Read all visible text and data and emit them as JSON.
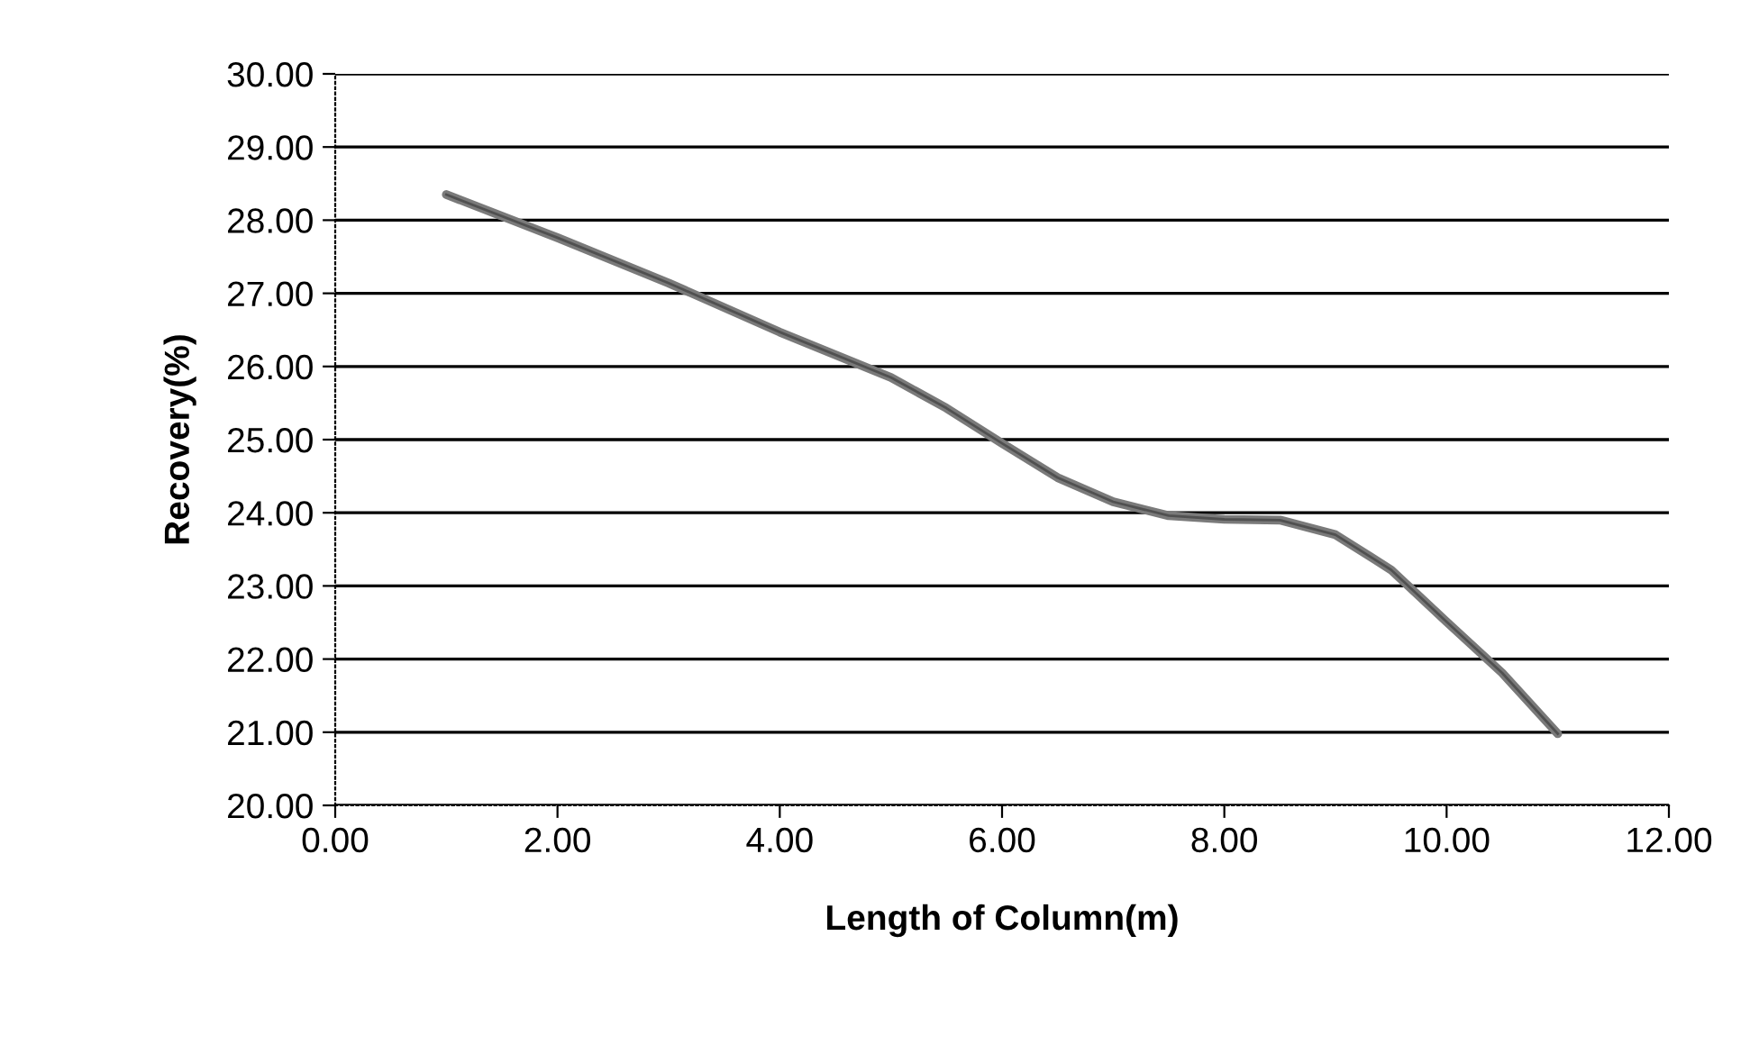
{
  "chart_data": {
    "type": "line",
    "xlabel": "Length of Column(m)",
    "ylabel": "Recovery(%)",
    "series": [
      {
        "color": "#7a7a7a",
        "x": [
          1,
          2,
          3,
          4,
          5,
          5.5,
          6,
          6.5,
          7,
          7.5,
          8,
          8.5,
          9,
          9.5,
          10,
          10.5,
          11
        ],
        "values": [
          28.35,
          27.76,
          27.14,
          26.47,
          25.85,
          25.43,
          24.95,
          24.48,
          24.15,
          23.96,
          23.91,
          23.9,
          23.7,
          23.22,
          22.51,
          21.81,
          20.98
        ]
      }
    ],
    "xlim": [
      0,
      12
    ],
    "xticks": [
      {
        "value": 0,
        "label": "0.00"
      },
      {
        "value": 2,
        "label": "2.00"
      },
      {
        "value": 4,
        "label": "4.00"
      },
      {
        "value": 6,
        "label": "6.00"
      },
      {
        "value": 8,
        "label": "8.00"
      },
      {
        "value": 10,
        "label": "10.00"
      },
      {
        "value": 12,
        "label": "12.00"
      }
    ],
    "ylim": [
      20,
      30
    ],
    "yticks": [
      {
        "value": 20,
        "label": "20.00"
      },
      {
        "value": 21,
        "label": "21.00"
      },
      {
        "value": 22,
        "label": "22.00"
      },
      {
        "value": 23,
        "label": "23.00"
      },
      {
        "value": 24,
        "label": "24.00"
      },
      {
        "value": 25,
        "label": "25.00"
      },
      {
        "value": 26,
        "label": "26.00"
      },
      {
        "value": 27,
        "label": "27.00"
      },
      {
        "value": 28,
        "label": "28.00"
      },
      {
        "value": 29,
        "label": "29.00"
      },
      {
        "value": 30,
        "label": "30.00"
      }
    ],
    "grid": "y",
    "marker": "none",
    "line_style": "solid"
  }
}
